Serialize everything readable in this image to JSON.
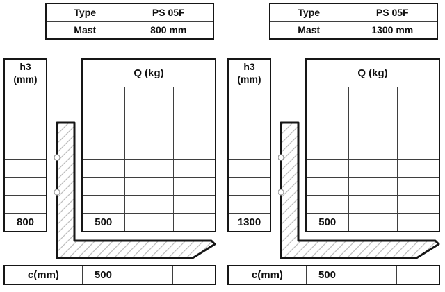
{
  "colors": {
    "background": "#ffffff",
    "grid_border": "#3f3f3f",
    "outer_border": "#161616",
    "text": "#101010",
    "hatch": "#bdbdbd",
    "fork_outline": "#161616"
  },
  "icons": {
    "fork": "forklift-fork-side-profile",
    "fork_holes": "fork-mounting-hole"
  },
  "panels": [
    {
      "id": "left",
      "spec": {
        "type_label": "Type",
        "type_value": "PS 05F",
        "mast_label": "Mast",
        "mast_value": "800 mm"
      },
      "h3": {
        "header": "h3\n(mm)",
        "rows": [
          "",
          "",
          "",
          "",
          "",
          "",
          "",
          "800"
        ]
      },
      "q": {
        "header": "Q (kg)",
        "rows": [
          [
            "",
            "",
            ""
          ],
          [
            "",
            "",
            ""
          ],
          [
            "",
            "",
            ""
          ],
          [
            "",
            "",
            ""
          ],
          [
            "",
            "",
            ""
          ],
          [
            "",
            "",
            ""
          ],
          [
            "",
            "",
            ""
          ],
          [
            "500",
            "",
            ""
          ]
        ]
      },
      "c": {
        "label": "c(mm)",
        "values": [
          "500",
          "",
          ""
        ]
      }
    },
    {
      "id": "right",
      "spec": {
        "type_label": "Type",
        "type_value": "PS 05F",
        "mast_label": "Mast",
        "mast_value": "1300 mm"
      },
      "h3": {
        "header": "h3\n(mm)",
        "rows": [
          "",
          "",
          "",
          "",
          "",
          "",
          "",
          "1300"
        ]
      },
      "q": {
        "header": "Q (kg)",
        "rows": [
          [
            "",
            "",
            ""
          ],
          [
            "",
            "",
            ""
          ],
          [
            "",
            "",
            ""
          ],
          [
            "",
            "",
            ""
          ],
          [
            "",
            "",
            ""
          ],
          [
            "",
            "",
            ""
          ],
          [
            "",
            "",
            ""
          ],
          [
            "500",
            "",
            ""
          ]
        ]
      },
      "c": {
        "label": "c(mm)",
        "values": [
          "500",
          "",
          ""
        ]
      }
    }
  ]
}
